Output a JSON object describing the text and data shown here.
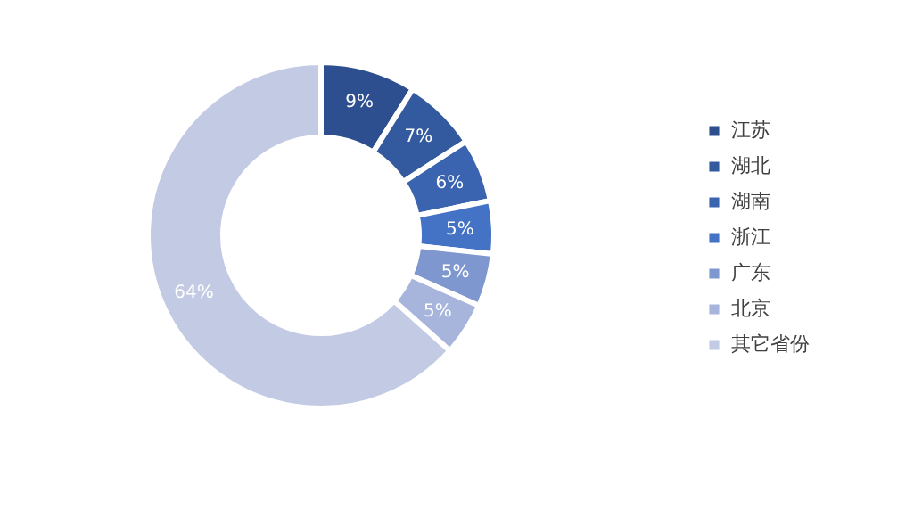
{
  "chart_data": {
    "type": "donut",
    "categories": [
      "江苏",
      "湖北",
      "湖南",
      "浙江",
      "广东",
      "北京",
      "其它省份"
    ],
    "values": [
      9,
      7,
      6,
      5,
      5,
      5,
      64
    ],
    "colors": [
      "#2e4f8f",
      "#33599f",
      "#3a63b0",
      "#4472c4",
      "#7f97cf",
      "#a7b4db",
      "#c3cae4"
    ],
    "value_labels": [
      "9%",
      "7%",
      "6%",
      "5%",
      "5%",
      "5%",
      "64%"
    ],
    "legend": "right"
  }
}
